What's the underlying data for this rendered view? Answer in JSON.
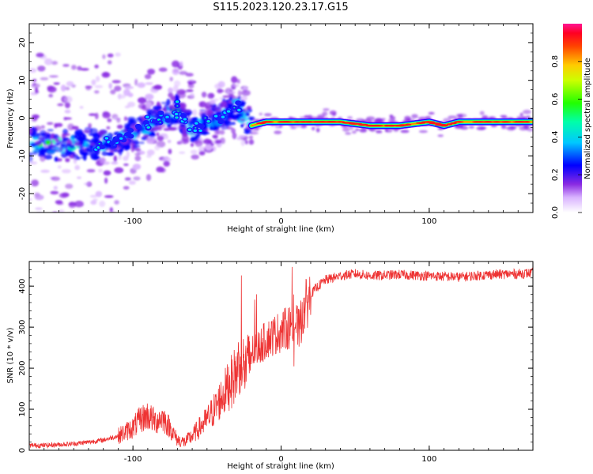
{
  "title": "S115.2023.120.23.17.G15",
  "colors": {
    "snr_line": "#ee3333",
    "spectrogram_cmap": [
      "#ffffff",
      "#d9b3ff",
      "#a64dff",
      "#7a1aff",
      "#4b00e6",
      "#0000ff",
      "#00c8ff",
      "#00ff99",
      "#66ff00",
      "#ffff00",
      "#ff8800",
      "#ff0000",
      "#ff007f"
    ]
  },
  "chart_data": [
    {
      "type": "heatmap",
      "title": "S115.2023.120.23.17.G15",
      "xlabel": "Height of straight line (km)",
      "ylabel": "Frequency (Hz)",
      "xlim": [
        -170,
        170
      ],
      "ylim": [
        -25,
        25
      ],
      "x_ticks": [
        -100,
        0,
        100
      ],
      "y_ticks": [
        -20,
        -10,
        0,
        10,
        20
      ],
      "colorbar": {
        "label": "Normalized spectral amplitude",
        "range": [
          0,
          1
        ],
        "ticks": [
          0.0,
          0.2,
          0.4,
          0.6,
          0.8
        ]
      },
      "ridge": {
        "x": [
          -120,
          -110,
          -100,
          -90,
          -80,
          -70,
          -60,
          -50,
          -40,
          -30,
          -20,
          -10,
          0,
          10,
          20,
          40,
          60,
          80,
          90,
          100,
          110,
          120,
          140,
          160,
          170
        ],
        "y": [
          -7,
          -6,
          -4,
          -2,
          0,
          2,
          -3,
          -1,
          1,
          3,
          -2,
          -1,
          -1,
          -1,
          -1,
          -1,
          -2,
          -2,
          -1.5,
          -1,
          -2,
          -1,
          -1,
          -1,
          -1
        ]
      }
    },
    {
      "type": "line",
      "xlabel": "Height of straight line (km)",
      "ylabel": "SNR (10 * v/v)",
      "xlim": [
        -170,
        170
      ],
      "ylim": [
        0,
        460
      ],
      "x_ticks": [
        -100,
        0,
        100
      ],
      "y_ticks": [
        0,
        100,
        200,
        300,
        400
      ],
      "series": [
        {
          "x": [
            -170,
            -160,
            -150,
            -140,
            -130,
            -120,
            -110,
            -100,
            -95,
            -90,
            -85,
            -80,
            -75,
            -70,
            -65,
            -60,
            -55,
            -50,
            -45,
            -40,
            -35,
            -30,
            -27,
            -25,
            -22,
            -20,
            -15,
            -10,
            -5,
            0,
            5,
            10,
            12,
            15,
            20,
            25,
            30,
            40,
            50,
            60,
            80,
            100,
            120,
            140,
            160,
            170
          ],
          "y": [
            12,
            12,
            14,
            16,
            20,
            25,
            35,
            55,
            75,
            85,
            70,
            80,
            55,
            25,
            20,
            35,
            55,
            75,
            100,
            130,
            160,
            190,
            230,
            200,
            210,
            240,
            250,
            270,
            280,
            290,
            300,
            310,
            290,
            340,
            380,
            400,
            415,
            425,
            430,
            425,
            428,
            425,
            422,
            428,
            430,
            432
          ]
        }
      ]
    }
  ]
}
